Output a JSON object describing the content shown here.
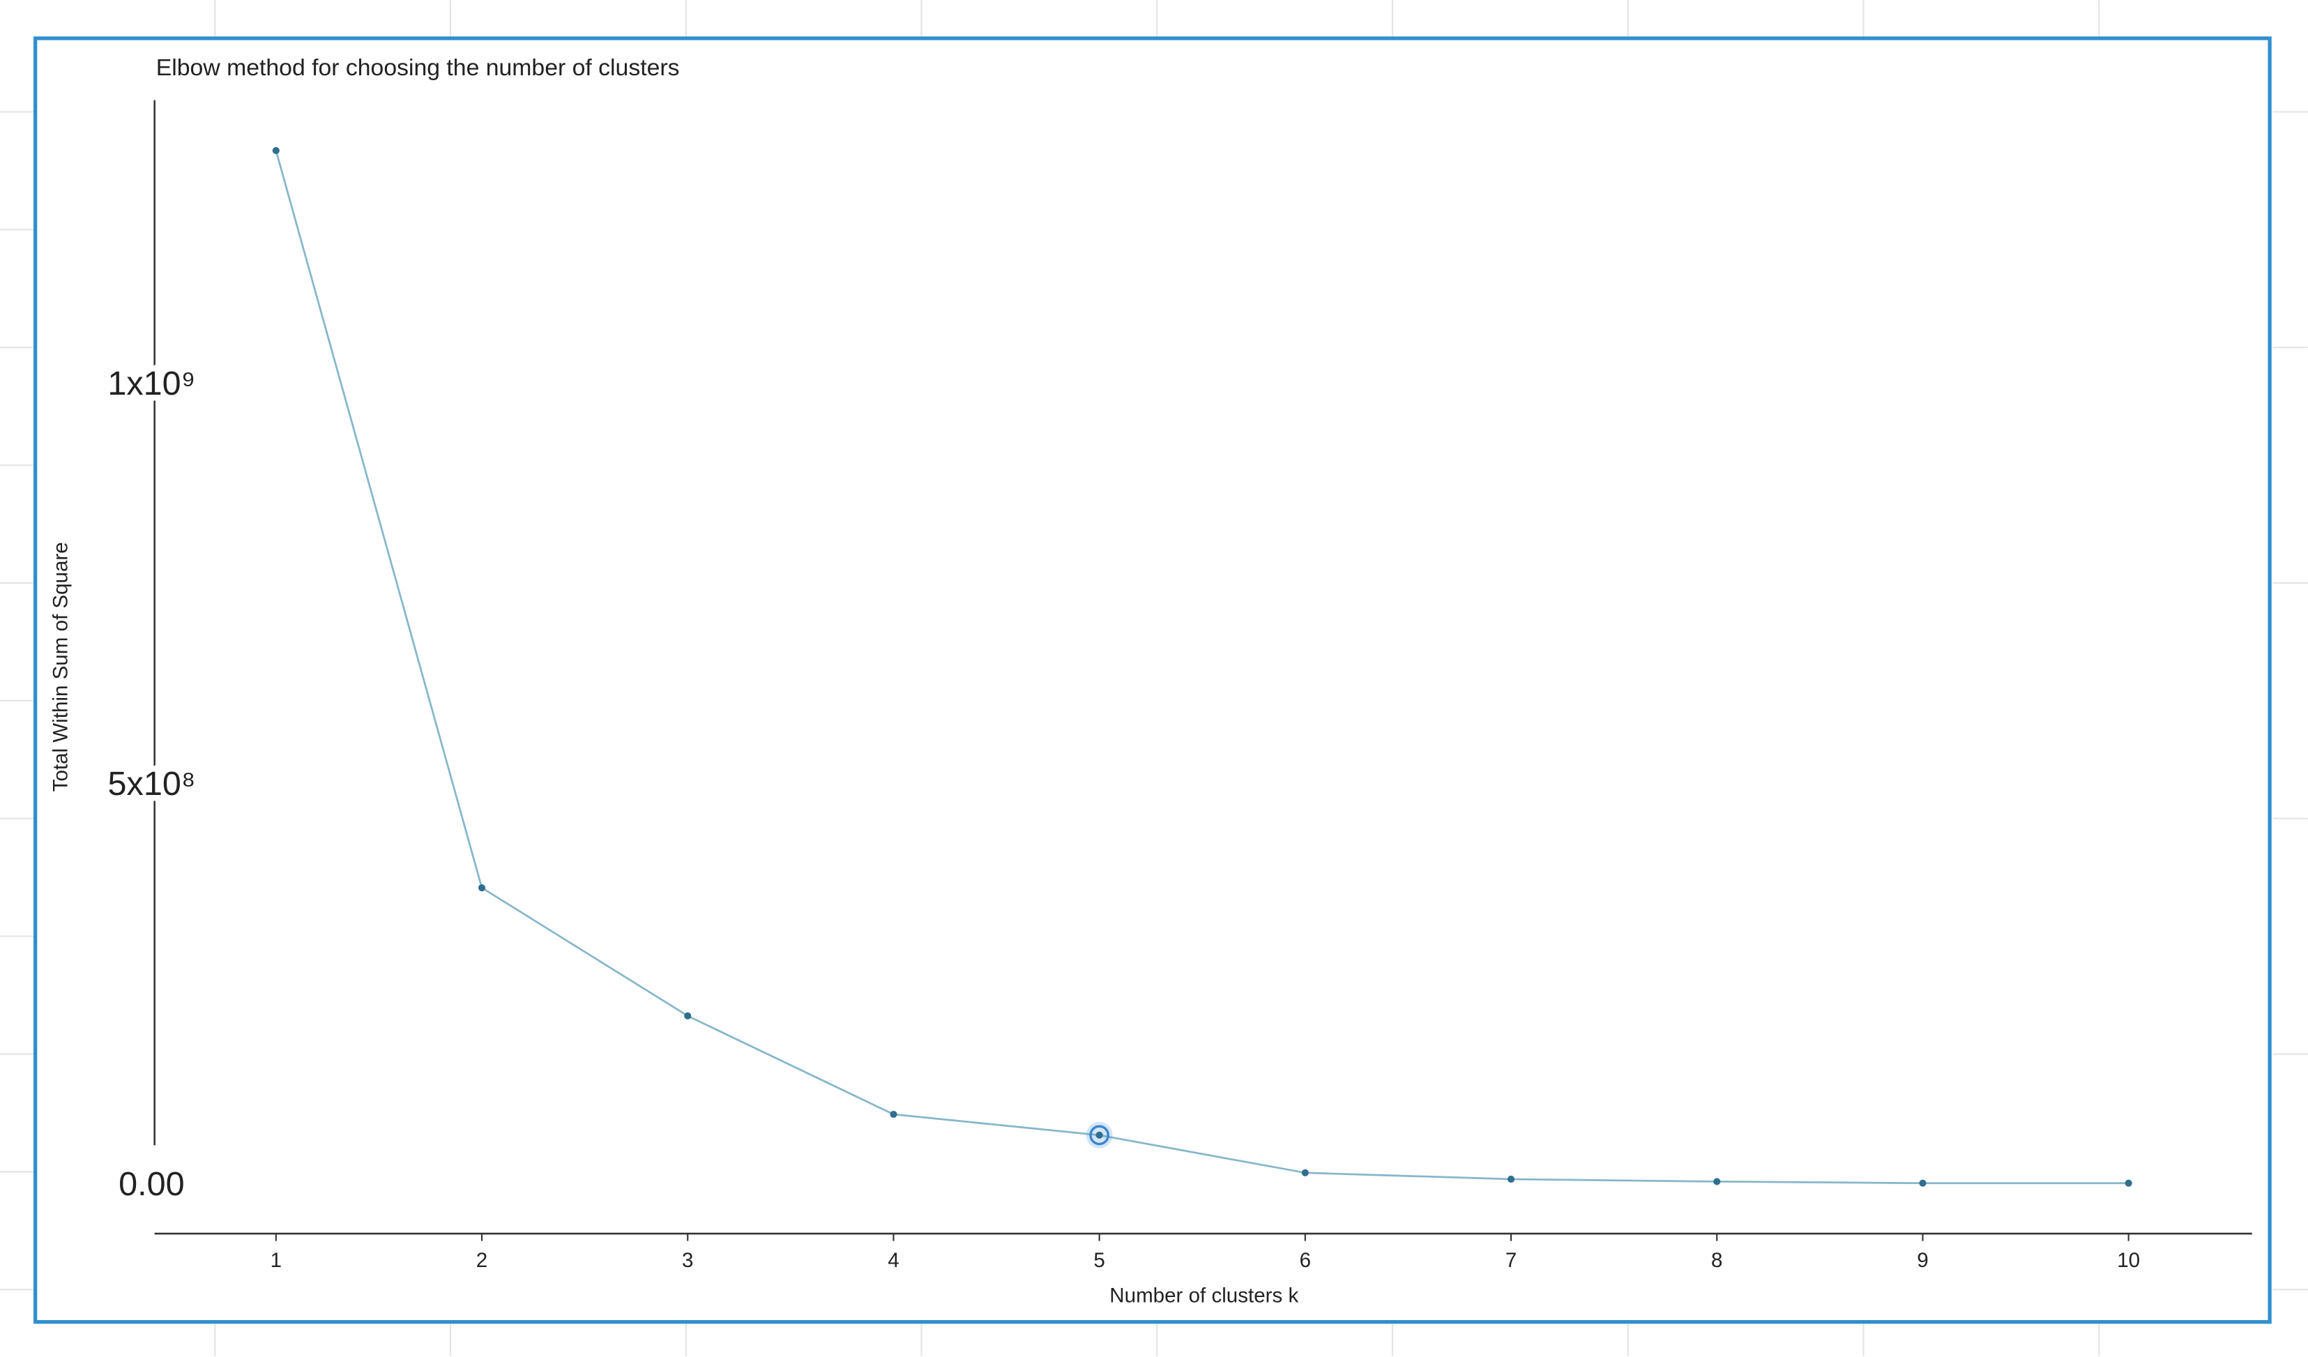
{
  "chart_data": {
    "type": "line",
    "title": "Elbow method for choosing the number of clusters",
    "x_label": "Number of clusters k",
    "y_label": "Total Within Sum of Square",
    "x": [
      1,
      2,
      3,
      4,
      5,
      6,
      7,
      8,
      9,
      10
    ],
    "series": [
      {
        "name": "Total Within Sum of Square",
        "color": "#2e6f8e",
        "values": [
          1294000000,
          373000000,
          213000000,
          90000000,
          64000000,
          17000000,
          9000000,
          6000000,
          4000000,
          4000000
        ]
      }
    ],
    "line_color": "#86b7c9",
    "highlight": 5,
    "xlim": [
      0.41,
      10.6
    ],
    "xticks": [
      1,
      2,
      3,
      4,
      5,
      6,
      7,
      8,
      9,
      10
    ],
    "ylim": [
      -59000000,
      1357000000
    ],
    "yticks": [
      {
        "value": 0,
        "label": "0.00"
      },
      {
        "value": 500000000,
        "label": "5x10⁸"
      },
      {
        "value": 1000000000,
        "label": "1x10⁹"
      }
    ],
    "grid": false
  }
}
